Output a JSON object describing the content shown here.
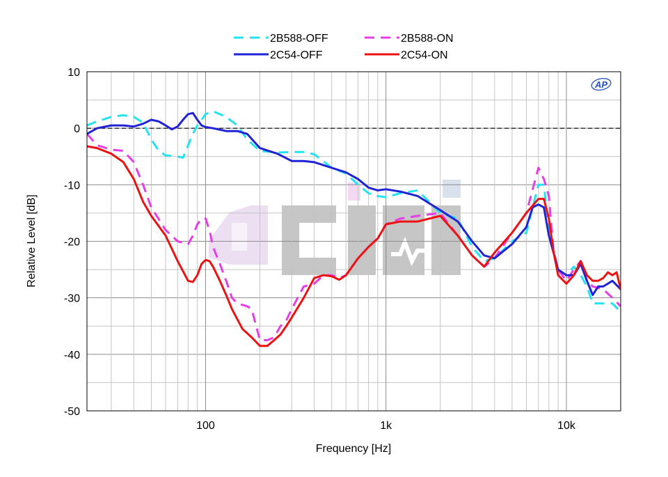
{
  "chart_data": {
    "type": "line",
    "title": "",
    "xlabel": "Frequency [Hz]",
    "ylabel": "Relative Level [dB]",
    "xscale": "log",
    "xlim": [
      22,
      20000
    ],
    "ylim": [
      -50,
      10
    ],
    "x_ticks": [
      {
        "value": 100,
        "label": "100"
      },
      {
        "value": 1000,
        "label": "1k"
      },
      {
        "value": 10000,
        "label": "10k"
      }
    ],
    "y_ticks": [
      {
        "value": 10,
        "label": "10"
      },
      {
        "value": 0,
        "label": "0"
      },
      {
        "value": -10,
        "label": "-10"
      },
      {
        "value": -20,
        "label": "-20"
      },
      {
        "value": -30,
        "label": "-30"
      },
      {
        "value": -40,
        "label": "-40"
      },
      {
        "value": -50,
        "label": "-50"
      }
    ],
    "grid": true,
    "reference_line": {
      "value": 0,
      "style": "dashed",
      "color": "#000000"
    },
    "legend_position": "top-center",
    "logo_text": "AP",
    "series": [
      {
        "name": "2B588-OFF",
        "color": "#22e3f0",
        "dash": "dashed",
        "points": [
          [
            22,
            0.5
          ],
          [
            25,
            1.2
          ],
          [
            30,
            2
          ],
          [
            35,
            2.3
          ],
          [
            40,
            2
          ],
          [
            45,
            1
          ],
          [
            50,
            -2
          ],
          [
            55,
            -4
          ],
          [
            60,
            -4.8
          ],
          [
            70,
            -5
          ],
          [
            75,
            -5.2
          ],
          [
            80,
            -3
          ],
          [
            85,
            -1
          ],
          [
            90,
            0.5
          ],
          [
            95,
            1.5
          ],
          [
            100,
            2.5
          ],
          [
            110,
            3
          ],
          [
            130,
            2
          ],
          [
            150,
            0.5
          ],
          [
            170,
            -2
          ],
          [
            200,
            -4
          ],
          [
            250,
            -4.3
          ],
          [
            300,
            -4.2
          ],
          [
            350,
            -4.2
          ],
          [
            400,
            -4.6
          ],
          [
            500,
            -7
          ],
          [
            600,
            -8
          ],
          [
            700,
            -10
          ],
          [
            800,
            -11.5
          ],
          [
            900,
            -12
          ],
          [
            1000,
            -12.2
          ],
          [
            1200,
            -11.5
          ],
          [
            1500,
            -11
          ],
          [
            2000,
            -15
          ],
          [
            2500,
            -16
          ],
          [
            3000,
            -21
          ],
          [
            3500,
            -23.5
          ],
          [
            4000,
            -23
          ],
          [
            5000,
            -20
          ],
          [
            6000,
            -18.5
          ],
          [
            6500,
            -14
          ],
          [
            7000,
            -10
          ],
          [
            7500,
            -10
          ],
          [
            8000,
            -18
          ],
          [
            9000,
            -25
          ],
          [
            10000,
            -26
          ],
          [
            11000,
            -24.5
          ],
          [
            12000,
            -26
          ],
          [
            13000,
            -28
          ],
          [
            14000,
            -31
          ],
          [
            16000,
            -31
          ],
          [
            18000,
            -31
          ],
          [
            20000,
            -32.5
          ]
        ]
      },
      {
        "name": "2B588-ON",
        "color": "#e83ce8",
        "dash": "dashed",
        "points": [
          [
            22,
            -1
          ],
          [
            25,
            -3
          ],
          [
            30,
            -3.8
          ],
          [
            35,
            -4
          ],
          [
            40,
            -6
          ],
          [
            45,
            -10
          ],
          [
            50,
            -14
          ],
          [
            60,
            -18
          ],
          [
            70,
            -20
          ],
          [
            80,
            -20.5
          ],
          [
            85,
            -19
          ],
          [
            90,
            -17
          ],
          [
            95,
            -16
          ],
          [
            100,
            -16
          ],
          [
            105,
            -18
          ],
          [
            110,
            -21
          ],
          [
            120,
            -24
          ],
          [
            130,
            -27
          ],
          [
            140,
            -30
          ],
          [
            150,
            -31
          ],
          [
            170,
            -31.5
          ],
          [
            180,
            -32
          ],
          [
            200,
            -37.5
          ],
          [
            220,
            -37.5
          ],
          [
            240,
            -37
          ],
          [
            260,
            -35
          ],
          [
            280,
            -34
          ],
          [
            300,
            -32
          ],
          [
            350,
            -28
          ],
          [
            400,
            -27.5
          ],
          [
            450,
            -26
          ],
          [
            500,
            -26
          ],
          [
            550,
            -26.5
          ],
          [
            600,
            -26
          ],
          [
            700,
            -23
          ],
          [
            800,
            -21
          ],
          [
            900,
            -19.5
          ],
          [
            1000,
            -17
          ],
          [
            1200,
            -16
          ],
          [
            1500,
            -15.5
          ],
          [
            2000,
            -15
          ],
          [
            2500,
            -19
          ],
          [
            3000,
            -22.5
          ],
          [
            3500,
            -24.5
          ],
          [
            4000,
            -23
          ],
          [
            5000,
            -18.5
          ],
          [
            6000,
            -15
          ],
          [
            7000,
            -7
          ],
          [
            7500,
            -9
          ],
          [
            8000,
            -12
          ],
          [
            8500,
            -22
          ],
          [
            9000,
            -25
          ],
          [
            10000,
            -27
          ],
          [
            11000,
            -25
          ],
          [
            12000,
            -23.5
          ],
          [
            13000,
            -27
          ],
          [
            14000,
            -28
          ],
          [
            16000,
            -28.5
          ],
          [
            18000,
            -30
          ],
          [
            20000,
            -31.5
          ]
        ]
      },
      {
        "name": "2C54-OFF",
        "color": "#1f22d6",
        "dash": "solid",
        "points": [
          [
            22,
            -1
          ],
          [
            25,
            0
          ],
          [
            30,
            0.5
          ],
          [
            35,
            0.5
          ],
          [
            40,
            0.3
          ],
          [
            45,
            0.8
          ],
          [
            50,
            1.5
          ],
          [
            55,
            1.2
          ],
          [
            60,
            0.5
          ],
          [
            65,
            -0.2
          ],
          [
            70,
            0.3
          ],
          [
            75,
            1.5
          ],
          [
            80,
            2.5
          ],
          [
            85,
            2.7
          ],
          [
            90,
            1.5
          ],
          [
            95,
            0.5
          ],
          [
            100,
            0.2
          ],
          [
            110,
            0
          ],
          [
            130,
            -0.5
          ],
          [
            150,
            -0.5
          ],
          [
            170,
            -1
          ],
          [
            200,
            -3.5
          ],
          [
            250,
            -4.5
          ],
          [
            300,
            -5.8
          ],
          [
            350,
            -5.8
          ],
          [
            400,
            -6
          ],
          [
            500,
            -7
          ],
          [
            600,
            -7.8
          ],
          [
            700,
            -9
          ],
          [
            800,
            -10.5
          ],
          [
            900,
            -11
          ],
          [
            1000,
            -10.8
          ],
          [
            1200,
            -11.2
          ],
          [
            1500,
            -12
          ],
          [
            2000,
            -14.5
          ],
          [
            2500,
            -16.5
          ],
          [
            3000,
            -20
          ],
          [
            3500,
            -22.5
          ],
          [
            4000,
            -23
          ],
          [
            5000,
            -20.5
          ],
          [
            6000,
            -17.5
          ],
          [
            6500,
            -14
          ],
          [
            7000,
            -13.5
          ],
          [
            7500,
            -14
          ],
          [
            8000,
            -19
          ],
          [
            9000,
            -25
          ],
          [
            10000,
            -26
          ],
          [
            11000,
            -26
          ],
          [
            12000,
            -24
          ],
          [
            13000,
            -27
          ],
          [
            14000,
            -29.5
          ],
          [
            15000,
            -28
          ],
          [
            16000,
            -28
          ],
          [
            18000,
            -27
          ],
          [
            20000,
            -28.5
          ]
        ]
      },
      {
        "name": "2C54-ON",
        "color": "#ee1111",
        "dash": "solid",
        "points": [
          [
            22,
            -3.2
          ],
          [
            25,
            -3.5
          ],
          [
            30,
            -4.5
          ],
          [
            35,
            -6
          ],
          [
            40,
            -9
          ],
          [
            45,
            -13
          ],
          [
            50,
            -15.5
          ],
          [
            60,
            -19
          ],
          [
            70,
            -23.5
          ],
          [
            80,
            -27
          ],
          [
            85,
            -27.2
          ],
          [
            90,
            -26
          ],
          [
            95,
            -24
          ],
          [
            100,
            -23.3
          ],
          [
            105,
            -23.5
          ],
          [
            110,
            -24.5
          ],
          [
            120,
            -27
          ],
          [
            130,
            -29.5
          ],
          [
            140,
            -32
          ],
          [
            160,
            -35.5
          ],
          [
            180,
            -37
          ],
          [
            200,
            -38.5
          ],
          [
            220,
            -38.5
          ],
          [
            240,
            -37.5
          ],
          [
            260,
            -36.5
          ],
          [
            280,
            -35
          ],
          [
            300,
            -33.5
          ],
          [
            350,
            -30
          ],
          [
            400,
            -26.5
          ],
          [
            450,
            -26
          ],
          [
            500,
            -26.2
          ],
          [
            550,
            -26.8
          ],
          [
            600,
            -26
          ],
          [
            700,
            -23
          ],
          [
            800,
            -21
          ],
          [
            900,
            -19.5
          ],
          [
            1000,
            -17
          ],
          [
            1200,
            -16.5
          ],
          [
            1500,
            -16.5
          ],
          [
            2000,
            -15.5
          ],
          [
            2500,
            -19
          ],
          [
            3000,
            -22.5
          ],
          [
            3500,
            -24.5
          ],
          [
            4000,
            -22
          ],
          [
            5000,
            -18.5
          ],
          [
            6000,
            -15
          ],
          [
            7000,
            -12.5
          ],
          [
            7500,
            -12.5
          ],
          [
            8000,
            -16
          ],
          [
            8500,
            -22
          ],
          [
            9000,
            -26
          ],
          [
            10000,
            -27.5
          ],
          [
            11000,
            -26
          ],
          [
            12000,
            -23.5
          ],
          [
            13000,
            -26
          ],
          [
            14000,
            -27
          ],
          [
            15000,
            -27
          ],
          [
            16000,
            -26.5
          ],
          [
            17000,
            -25.5
          ],
          [
            18000,
            -26
          ],
          [
            19000,
            -25.5
          ],
          [
            20000,
            -28.5
          ]
        ]
      }
    ]
  }
}
